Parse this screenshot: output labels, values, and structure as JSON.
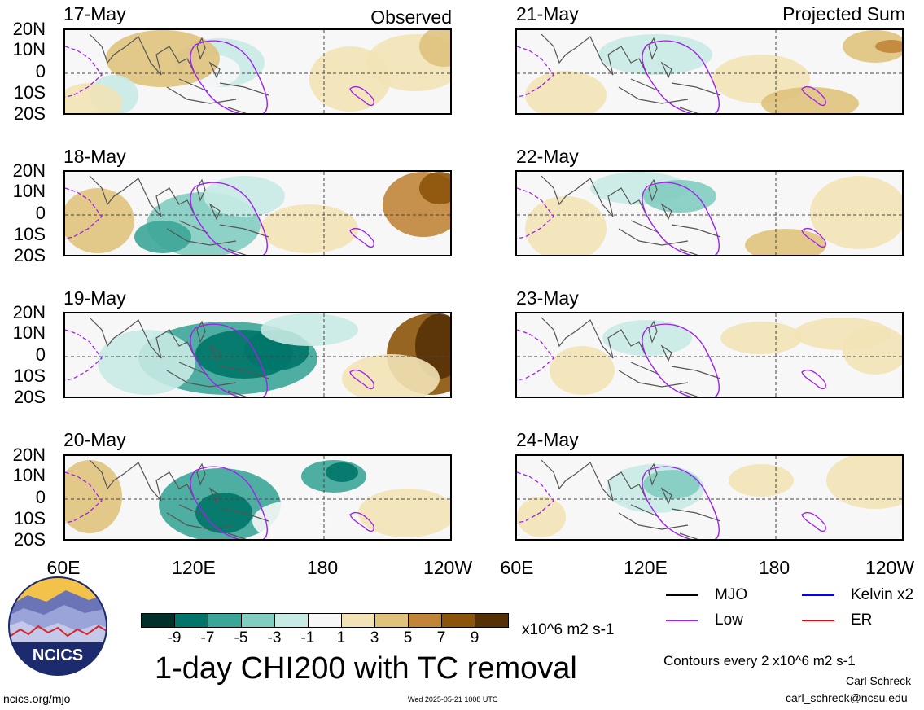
{
  "panels": {
    "left_header": "Observed",
    "right_header": "Projected Sum",
    "left": [
      {
        "date": "17-May"
      },
      {
        "date": "18-May"
      },
      {
        "date": "19-May"
      },
      {
        "date": "20-May"
      }
    ],
    "right": [
      {
        "date": "21-May"
      },
      {
        "date": "22-May"
      },
      {
        "date": "23-May"
      },
      {
        "date": "24-May"
      }
    ]
  },
  "lat_labels": [
    "20N",
    "10N",
    "0",
    "10S",
    "20S"
  ],
  "lon_labels": [
    "60E",
    "120E",
    "180",
    "120W"
  ],
  "lon_labels_right": [
    "60E",
    "120E",
    "180",
    "120W"
  ],
  "colorbar": {
    "colors": [
      "#01302a",
      "#017569",
      "#3ba597",
      "#82ccc0",
      "#c8eae4",
      "#f7f7f7",
      "#f2e3b6",
      "#dfc27c",
      "#c08538",
      "#8c540a",
      "#553105"
    ],
    "labels": [
      "-9",
      "-7",
      "-5",
      "-3",
      "-1",
      "1",
      "3",
      "5",
      "7",
      "9"
    ],
    "units": "x10^6 m2 s-1"
  },
  "title": "1-day CHI200 with TC removal",
  "legend": {
    "items": [
      {
        "label": "MJO",
        "color": "#000000"
      },
      {
        "label": "Kelvin x2",
        "color": "#0000ff"
      },
      {
        "label": "Low",
        "color": "#a020f0"
      },
      {
        "label": "ER",
        "color": "#ff0000"
      }
    ],
    "contours_note": "Contours every 2 x10^6 m2 s-1"
  },
  "credits": {
    "author": "Carl Schreck",
    "email": "carl_schreck@ncsu.edu",
    "site": "ncics.org/mjo",
    "timestamp": "Wed 2025-05-21 1008 UTC",
    "logo_text": "NCICS"
  }
}
